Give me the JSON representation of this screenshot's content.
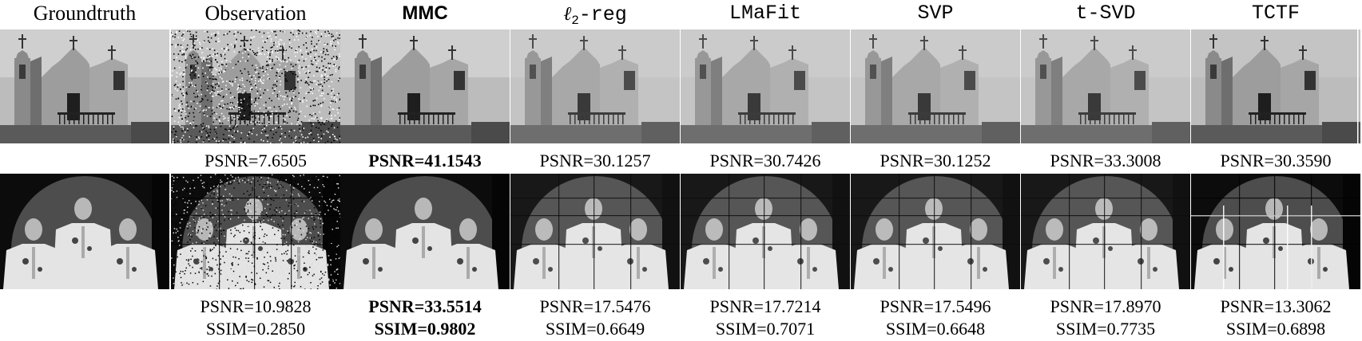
{
  "methods": [
    {
      "name": "Groundtruth",
      "style": "serif",
      "psnr1": "",
      "psnr2": "",
      "ssim2": "",
      "best": false,
      "noise": "none"
    },
    {
      "name": "Observation",
      "style": "serif",
      "psnr1": "PSNR=7.6505",
      "psnr2": "PSNR=10.9828",
      "ssim2": "SSIM=0.2850",
      "best": false,
      "noise": "heavy"
    },
    {
      "name": "MMC",
      "style": "bold",
      "psnr1": "PSNR=41.1543",
      "psnr2": "PSNR=33.5514",
      "ssim2": "SSIM=0.9802",
      "best": true,
      "noise": "none"
    },
    {
      "name": "ℓ2-reg",
      "style": "ell",
      "psnr1": "PSNR=30.1257",
      "psnr2": "PSNR=17.5476",
      "ssim2": "SSIM=0.6649",
      "best": false,
      "noise": "light"
    },
    {
      "name": "LMaFit",
      "style": "mono",
      "psnr1": "PSNR=30.7426",
      "psnr2": "PSNR=17.7214",
      "ssim2": "SSIM=0.7071",
      "best": false,
      "noise": "light"
    },
    {
      "name": "SVP",
      "style": "mono",
      "psnr1": "PSNR=30.1252",
      "psnr2": "PSNR=17.5496",
      "ssim2": "SSIM=0.6648",
      "best": false,
      "noise": "light"
    },
    {
      "name": "t-SVD",
      "style": "mono",
      "psnr1": "PSNR=33.3008",
      "psnr2": "PSNR=17.8970",
      "ssim2": "SSIM=0.7735",
      "best": false,
      "noise": "light"
    },
    {
      "name": "TCTF",
      "style": "mono",
      "psnr1": "PSNR=30.3590",
      "psnr2": "PSNR=13.3062",
      "ssim2": "SSIM=0.6898",
      "best": false,
      "noise": "stripes"
    }
  ]
}
